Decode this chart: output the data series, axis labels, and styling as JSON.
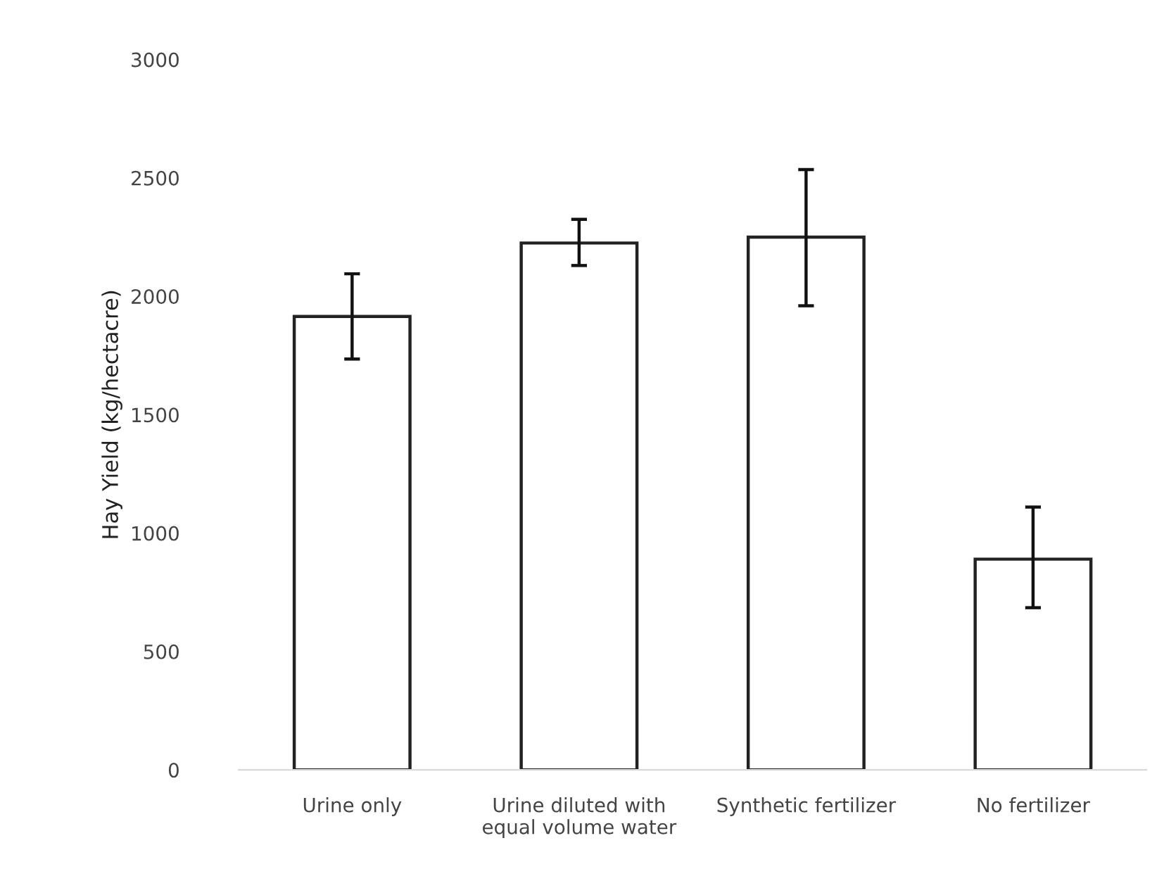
{
  "chart_data": {
    "type": "bar",
    "ylabel": "Hay Yield (kg/hectacre)",
    "categories": [
      "Urine only",
      "Urine diluted with\nequal volume water",
      "Synthetic fertilizer",
      "No fertilizer"
    ],
    "values": [
      1915,
      2225,
      2250,
      890
    ],
    "errors": [
      [
        1735,
        2095
      ],
      [
        2130,
        2325
      ],
      [
        1960,
        2535
      ],
      [
        685,
        1110
      ]
    ],
    "color": "#ffffff",
    "ylim": [
      0,
      3000
    ],
    "yticks": [
      0,
      500,
      1000,
      1500,
      2000,
      2500,
      3000
    ],
    "grid": false
  }
}
